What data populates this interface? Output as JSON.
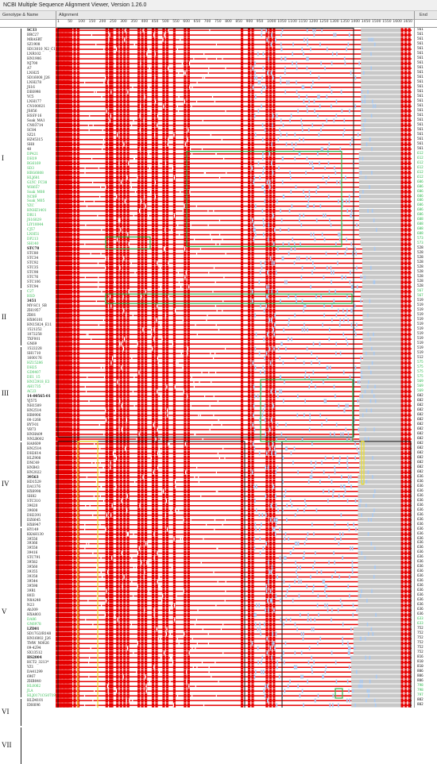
{
  "window": {
    "title": "NCBI Multiple Sequence Alignment Viewer, Version 1.26.0"
  },
  "columns": {
    "name_header": "Genotype & Name",
    "alignment_header": "Alignment",
    "end_header": "End"
  },
  "ruler": {
    "ticks": [
      "1",
      "50",
      "100",
      "150",
      "200",
      "250",
      "300",
      "350",
      "400",
      "450",
      "500",
      "550",
      "600",
      "650",
      "700",
      "750",
      "800",
      "850",
      "900",
      "950",
      "1000",
      "1050",
      "1100",
      "1150",
      "1200",
      "1250",
      "1300",
      "1350",
      "1400",
      "1450",
      "1500",
      "1550",
      "1600",
      "1650"
    ]
  },
  "groups": [
    {
      "label": "I",
      "first": 0,
      "last": 54
    },
    {
      "label": "II",
      "first": 55,
      "last": 66
    },
    {
      "label": "III",
      "first": 67,
      "last": 86
    },
    {
      "label": "IV",
      "first": 87,
      "last": 104
    },
    {
      "label": "V",
      "first": 105,
      "last": 140
    },
    {
      "label": "VI",
      "first": 141,
      "last": 146
    },
    {
      "label": "VII",
      "first": 147,
      "last": 154
    }
  ],
  "sequences": [
    {
      "name": "SC33",
      "end": "561",
      "color": "#111",
      "bold": true
    },
    {
      "name": "BRC27",
      "end": "561",
      "color": "#111"
    },
    {
      "name": "MRASRT",
      "end": "561",
      "color": "#111"
    },
    {
      "name": "SZ1908",
      "end": "561",
      "color": "#111"
    },
    {
      "name": "SD13010_N2_C15",
      "end": "561",
      "color": "#111"
    },
    {
      "name": "LNR102",
      "end": "561",
      "color": "#111"
    },
    {
      "name": "HN1906",
      "end": "561",
      "color": "#111"
    },
    {
      "name": "NJ700",
      "end": "561",
      "color": "#111"
    },
    {
      "name": "A7",
      "end": "561",
      "color": "#111"
    },
    {
      "name": "LNH25",
      "end": "561",
      "color": "#111"
    },
    {
      "name": "SD16008_J26",
      "end": "561",
      "color": "#111"
    },
    {
      "name": "LNH278",
      "end": "561",
      "color": "#111"
    },
    {
      "name": "JS16",
      "end": "561",
      "color": "#111"
    },
    {
      "name": "DE6998",
      "end": "561",
      "color": "#111"
    },
    {
      "name": "YC5",
      "end": "561",
      "color": "#111"
    },
    {
      "name": "LNH177",
      "end": "561",
      "color": "#111"
    },
    {
      "name": "CN100021",
      "end": "561",
      "color": "#111"
    },
    {
      "name": "JS856",
      "end": "561",
      "color": "#111"
    },
    {
      "name": "HSSY-16",
      "end": "561",
      "color": "#111"
    },
    {
      "name": "Soak_MA1",
      "end": "561",
      "color": "#111"
    },
    {
      "name": "CN03714",
      "end": "561",
      "color": "#111"
    },
    {
      "name": "SC84",
      "end": "561",
      "color": "#111"
    },
    {
      "name": "SZ21",
      "end": "561",
      "color": "#111"
    },
    {
      "name": "HZ45315",
      "end": "561",
      "color": "#111"
    },
    {
      "name": "SH8",
      "end": "561",
      "color": "#111"
    },
    {
      "name": "40",
      "end": "561",
      "color": "#111"
    },
    {
      "name": "DP421",
      "end": "612",
      "color": "#2eb84e"
    },
    {
      "name": "DH19",
      "end": "612",
      "color": "#2eb84e"
    },
    {
      "name": "RG6169",
      "end": "612",
      "color": "#2eb84e"
    },
    {
      "name": "SD3",
      "end": "612",
      "color": "#2eb84e"
    },
    {
      "name": "HBG6808",
      "end": "612",
      "color": "#2eb84e"
    },
    {
      "name": "HLJ681",
      "end": "612",
      "color": "#2eb84e"
    },
    {
      "name": "GLYC_FC38",
      "end": "606",
      "color": "#2eb84e"
    },
    {
      "name": "WH657",
      "end": "606",
      "color": "#2eb84e"
    },
    {
      "name": "Soak_M08",
      "end": "606",
      "color": "#2eb84e"
    },
    {
      "name": "NC89",
      "end": "606",
      "color": "#2eb84e"
    },
    {
      "name": "Soak_M05",
      "end": "606",
      "color": "#2eb84e"
    },
    {
      "name": "YZC",
      "end": "606",
      "color": "#2eb84e"
    },
    {
      "name": "HNHZ1401",
      "end": "606",
      "color": "#2eb84e"
    },
    {
      "name": "DR11",
      "end": "606",
      "color": "#2eb84e"
    },
    {
      "name": "JS16029",
      "end": "608",
      "color": "#2eb84e"
    },
    {
      "name": "LIY10044",
      "end": "608",
      "color": "#2eb84e"
    },
    {
      "name": "CJ57",
      "end": "608",
      "color": "#2eb84e"
    },
    {
      "name": "LNH51",
      "end": "608",
      "color": "#2eb84e"
    },
    {
      "name": "DP213",
      "end": "573",
      "color": "#2eb84e"
    },
    {
      "name": "SH140",
      "end": "573",
      "color": "#2eb84e"
    },
    {
      "name": "STC78",
      "end": "528",
      "color": "#111",
      "bold": true
    },
    {
      "name": "STC80",
      "end": "528",
      "color": "#111"
    },
    {
      "name": "STC34",
      "end": "528",
      "color": "#111"
    },
    {
      "name": "STC92",
      "end": "528",
      "color": "#111"
    },
    {
      "name": "STC35",
      "end": "528",
      "color": "#111"
    },
    {
      "name": "STC98",
      "end": "528",
      "color": "#111"
    },
    {
      "name": "STC76",
      "end": "528",
      "color": "#111"
    },
    {
      "name": "STC106",
      "end": "528",
      "color": "#111"
    },
    {
      "name": "STC94",
      "end": "528",
      "color": "#111"
    },
    {
      "name": "C27",
      "end": "567",
      "color": "#2eb84e"
    },
    {
      "name": "HSD",
      "end": "567",
      "color": "#2eb84e"
    },
    {
      "name": "3451",
      "end": "519",
      "color": "#111",
      "bold": true
    },
    {
      "name": "MY-SC1_SB",
      "end": "519",
      "color": "#111"
    },
    {
      "name": "ZH1957",
      "end": "519",
      "color": "#111"
    },
    {
      "name": "ZB01",
      "end": "519",
      "color": "#111"
    },
    {
      "name": "HX06101",
      "end": "519",
      "color": "#111"
    },
    {
      "name": "HN15024_E11",
      "end": "519",
      "color": "#111"
    },
    {
      "name": "1521252",
      "end": "519",
      "color": "#111"
    },
    {
      "name": "1072258",
      "end": "519",
      "color": "#111"
    },
    {
      "name": "TXF001",
      "end": "519",
      "color": "#111"
    },
    {
      "name": "GN69",
      "end": "519",
      "color": "#111"
    },
    {
      "name": "1522228",
      "end": "519",
      "color": "#111"
    },
    {
      "name": "SH1710",
      "end": "519",
      "color": "#111"
    },
    {
      "name": "1600176",
      "end": "512",
      "color": "#111"
    },
    {
      "name": "HZ15286",
      "end": "575",
      "color": "#2eb84e"
    },
    {
      "name": "DH25",
      "end": "575",
      "color": "#2eb84e"
    },
    {
      "name": "GD0407",
      "end": "575",
      "color": "#2eb84e"
    },
    {
      "name": "DE1_15",
      "end": "575",
      "color": "#2eb84e"
    },
    {
      "name": "HN12918_E3",
      "end": "569",
      "color": "#2eb84e"
    },
    {
      "name": "AH1735",
      "end": "569",
      "color": "#2eb84e"
    },
    {
      "name": "AC23",
      "end": "569",
      "color": "#2eb84e"
    },
    {
      "name": "14-00565-01",
      "end": "602",
      "color": "#111",
      "bold": true
    },
    {
      "name": "YJ575",
      "end": "602",
      "color": "#111"
    },
    {
      "name": "NH1509",
      "end": "602",
      "color": "#111"
    },
    {
      "name": "HN2514",
      "end": "602",
      "color": "#111"
    },
    {
      "name": "HB0906",
      "end": "602",
      "color": "#111"
    },
    {
      "name": "00-1268",
      "end": "602",
      "color": "#111"
    },
    {
      "name": "BYT-01",
      "end": "602",
      "color": "#111"
    },
    {
      "name": "VB73",
      "end": "602",
      "color": "#111"
    },
    {
      "name": "HNHA09",
      "end": "602",
      "color": "#111"
    },
    {
      "name": "NNLB002",
      "end": "602",
      "color": "#111"
    },
    {
      "name": "HA0609",
      "end": "602",
      "color": "#111"
    },
    {
      "name": "HN2514",
      "end": "602",
      "color": "#111"
    },
    {
      "name": "DH2614",
      "end": "602",
      "color": "#111"
    },
    {
      "name": "HLZ908",
      "end": "602",
      "color": "#111"
    },
    {
      "name": "DNC49",
      "end": "602",
      "color": "#111"
    },
    {
      "name": "HNB43",
      "end": "602",
      "color": "#111"
    },
    {
      "name": "HN2022",
      "end": "602",
      "color": "#111"
    },
    {
      "name": "39563",
      "end": "636",
      "color": "#111",
      "bold": true
    },
    {
      "name": "HD1529",
      "end": "636",
      "color": "#111"
    },
    {
      "name": "DA1376",
      "end": "636",
      "color": "#111"
    },
    {
      "name": "HX6998",
      "end": "636",
      "color": "#111"
    },
    {
      "name": "SH82",
      "end": "636",
      "color": "#111"
    },
    {
      "name": "STC310",
      "end": "636",
      "color": "#111"
    },
    {
      "name": "39620",
      "end": "636",
      "color": "#111"
    },
    {
      "name": "39608",
      "end": "636",
      "color": "#111"
    },
    {
      "name": "DH2391",
      "end": "636",
      "color": "#111"
    },
    {
      "name": "DZ6645",
      "end": "636",
      "color": "#111"
    },
    {
      "name": "HX6947",
      "end": "636",
      "color": "#111"
    },
    {
      "name": "HY149",
      "end": "636",
      "color": "#111"
    },
    {
      "name": "KKAH130",
      "end": "636",
      "color": "#111"
    },
    {
      "name": "39556",
      "end": "636",
      "color": "#111"
    },
    {
      "name": "39366",
      "end": "636",
      "color": "#111"
    },
    {
      "name": "39558",
      "end": "636",
      "color": "#111"
    },
    {
      "name": "39416",
      "end": "636",
      "color": "#111"
    },
    {
      "name": "STC791",
      "end": "636",
      "color": "#111"
    },
    {
      "name": "39582",
      "end": "636",
      "color": "#111"
    },
    {
      "name": "39560",
      "end": "636",
      "color": "#111"
    },
    {
      "name": "39355",
      "end": "636",
      "color": "#111"
    },
    {
      "name": "39358",
      "end": "636",
      "color": "#111"
    },
    {
      "name": "39544",
      "end": "636",
      "color": "#111"
    },
    {
      "name": "39598",
      "end": "636",
      "color": "#111"
    },
    {
      "name": "39R1",
      "end": "636",
      "color": "#111"
    },
    {
      "name": "80I3",
      "end": "636",
      "color": "#111"
    },
    {
      "name": "N8A240",
      "end": "636",
      "color": "#111"
    },
    {
      "name": "N23",
      "end": "636",
      "color": "#111"
    },
    {
      "name": "Ah309",
      "end": "636",
      "color": "#111"
    },
    {
      "name": "HXA803",
      "end": "636",
      "color": "#111"
    },
    {
      "name": "DA86",
      "end": "633",
      "color": "#2eb84e"
    },
    {
      "name": "GN6978",
      "end": "633",
      "color": "#2eb84e"
    },
    {
      "name": "LZD01",
      "end": "752",
      "color": "#111",
      "bold": true
    },
    {
      "name": "SD17G3/R148",
      "end": "752",
      "color": "#111"
    },
    {
      "name": "HN16002_J26",
      "end": "752",
      "color": "#111"
    },
    {
      "name": "TMW_N0026",
      "end": "752",
      "color": "#111"
    },
    {
      "name": "09-4294",
      "end": "752",
      "color": "#111"
    },
    {
      "name": "SX13512",
      "end": "752",
      "color": "#111"
    },
    {
      "name": "HS2004",
      "end": "816",
      "color": "#111",
      "bold": true
    },
    {
      "name": "HCT2_3213*",
      "end": "810",
      "color": "#111"
    },
    {
      "name": "YZ1",
      "end": "810",
      "color": "#111"
    },
    {
      "name": "DA41299",
      "end": "806",
      "color": "#111"
    },
    {
      "name": "6967",
      "end": "806",
      "color": "#111"
    },
    {
      "name": "ZHB040",
      "end": "806",
      "color": "#111"
    },
    {
      "name": "HL0062",
      "end": "798",
      "color": "#2eb84e"
    },
    {
      "name": "JLA",
      "end": "798",
      "color": "#2eb84e"
    },
    {
      "name": "HLJ0171CG0719",
      "end": "797",
      "color": "#2eb84e"
    },
    {
      "name": "HLD4101",
      "end": "802",
      "color": "#111"
    },
    {
      "name": "IDH696",
      "end": "802",
      "color": "#111"
    }
  ],
  "highlights": [
    {
      "type": "black-frame"
    },
    {
      "type": "green-box"
    },
    {
      "type": "yellow-frame"
    }
  ],
  "colors": {
    "conserved": "#e60000",
    "gap": "#c8c8c8",
    "mismatch": "#a8c8f0",
    "highlight_green": "#2eb84e",
    "highlight_black": "#111111",
    "highlight_yellow": "#f0e020"
  }
}
